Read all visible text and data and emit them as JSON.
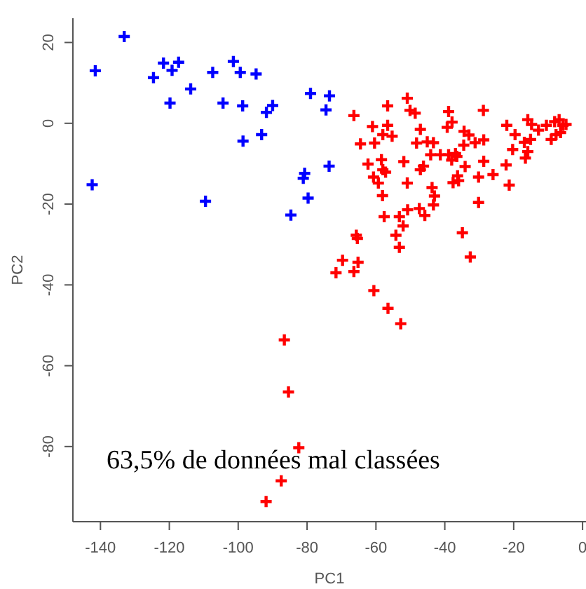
{
  "chart_data": {
    "type": "scatter",
    "xlabel": "PC1",
    "ylabel": "PC2",
    "xlim": [
      -148,
      1
    ],
    "ylim": [
      -98.6,
      26
    ],
    "xticks": [
      -140,
      -120,
      -100,
      -80,
      -60,
      -40,
      -20,
      0
    ],
    "yticks": [
      -80,
      -60,
      -40,
      -20,
      0,
      20
    ],
    "marker": "cross",
    "grid": false,
    "annotations": [
      "63,5% de données mal classées"
    ],
    "series": [
      {
        "color": "#0000ff",
        "x": [
          -133.1,
          -141.5,
          -142.4,
          -124.6,
          -121.7,
          -119.2,
          -117.3,
          -119.8,
          -113.8,
          -109.5,
          -107.4,
          -104.4,
          -101.4,
          -99.4,
          -98.7,
          -98.6,
          -94.8,
          -93.2,
          -91.8,
          -90.0,
          -84.7,
          -81.1,
          -80.7,
          -79.7,
          -79.0,
          -74.5,
          -73.5,
          -73.6
        ],
        "values": [
          21.5,
          13.0,
          -15.2,
          11.3,
          14.9,
          13.1,
          15.1,
          5.0,
          8.5,
          -19.3,
          12.6,
          5.0,
          15.3,
          12.6,
          4.3,
          -4.4,
          12.2,
          -2.8,
          2.7,
          4.4,
          -22.7,
          -13.6,
          -12.4,
          -18.5,
          7.4,
          3.3,
          6.8,
          -10.6
        ]
      },
      {
        "color": "#ff0000",
        "x": [
          -66.4,
          -56.6,
          -50.9,
          -50.1,
          -48.6,
          -61.0,
          -56.6,
          -58.0,
          -55.3,
          -64.5,
          -60.4,
          -47.1,
          -48.2,
          -45.1,
          -43.3,
          -38.9,
          -37.9,
          -39.3,
          -28.8,
          -34.4,
          -33.0,
          -31.2,
          -28.7,
          -34.5,
          -44.1,
          -41.3,
          -38.9,
          -36.9,
          -38.0,
          -36.5,
          -62.3,
          -58.4,
          -58.0,
          -57.2,
          -60.7,
          -59.3,
          -51.9,
          -47.1,
          -46.2,
          -50.9,
          -58.1,
          -43.7,
          -43.0,
          -43.3,
          -34.1,
          -28.7,
          -30.2,
          -36.3,
          -36.0,
          -37.6,
          -26.0,
          -22.2,
          -21.3,
          -30.2,
          -22.0,
          -19.6,
          -20.3,
          -15.9,
          -14.8,
          -12.8,
          -15.1,
          -16.9,
          -15.9,
          -16.6,
          -10.5,
          -9.1,
          -8.1,
          -6.8,
          -5.7,
          -4.8,
          -7.7,
          -6.4,
          -57.6,
          -53.2,
          -52.1,
          -50.8,
          -47.4,
          -45.8,
          -54.2,
          -53.2,
          -65.7,
          -65.4,
          -34.9,
          -32.6,
          -69.7,
          -71.6,
          -66.4,
          -65.2,
          -60.6,
          -56.5,
          -52.8,
          -86.6,
          -85.4,
          -82.4,
          -87.5,
          -91.9
        ],
        "values": [
          1.9,
          4.3,
          6.2,
          3.2,
          2.5,
          -0.8,
          -0.5,
          -2.8,
          -3.2,
          -5.1,
          -4.9,
          -1.5,
          -4.9,
          -4.6,
          -4.8,
          2.9,
          0.3,
          -1.0,
          3.2,
          -2.0,
          -2.9,
          -4.8,
          -4.1,
          -5.4,
          -7.8,
          -7.8,
          -7.8,
          -7.5,
          -9.1,
          -8.2,
          -10.1,
          -9.0,
          -11.5,
          -12.1,
          -13.3,
          -14.8,
          -9.5,
          -11.5,
          -10.6,
          -14.8,
          -17.9,
          -15.9,
          -18.0,
          -20.2,
          -10.7,
          -9.4,
          -13.3,
          -13.0,
          -14.2,
          -14.7,
          -12.7,
          -10.3,
          -15.3,
          -19.6,
          -0.5,
          -2.8,
          -6.5,
          0.9,
          -0.3,
          -1.7,
          -4.0,
          -4.7,
          -7.0,
          -8.6,
          -0.5,
          -4.0,
          0.4,
          0.9,
          -0.5,
          -0.3,
          -2.8,
          -2.3,
          -23.1,
          -23.1,
          -25.4,
          -21.4,
          -21.1,
          -22.8,
          -27.7,
          -30.7,
          -27.7,
          -28.5,
          -27.1,
          -33.1,
          -33.9,
          -37.0,
          -36.7,
          -34.4,
          -41.4,
          -45.8,
          -49.6,
          -53.6,
          -66.5,
          -80.3,
          -88.5,
          -93.6
        ]
      }
    ]
  }
}
